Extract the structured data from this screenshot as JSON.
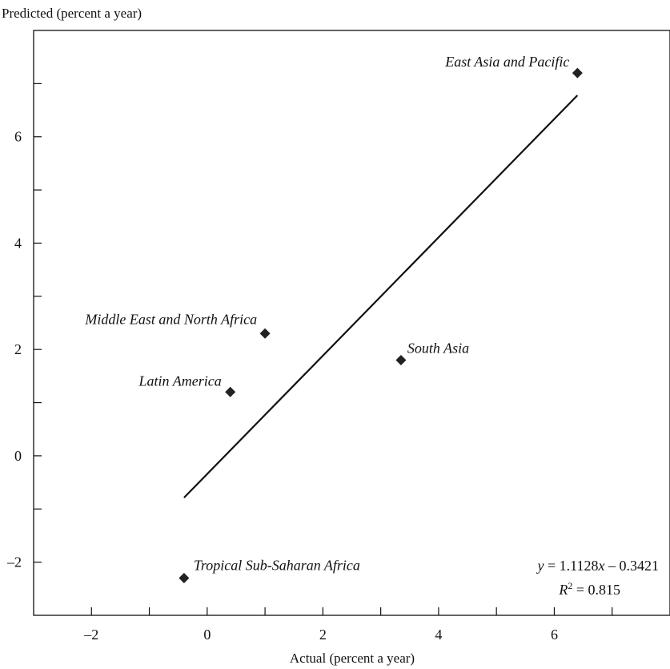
{
  "chart_data": {
    "type": "scatter",
    "ylabel": "Predicted (percent a year)",
    "xlabel": "Actual (percent a year)",
    "xlim": [
      -3,
      8
    ],
    "ylim": [
      -3,
      8
    ],
    "x_ticks": [
      -2,
      0,
      2,
      4,
      6
    ],
    "y_ticks": [
      -2,
      0,
      2,
      4,
      6
    ],
    "x_tick_labels": [
      "–2",
      "0",
      "2",
      "4",
      "6"
    ],
    "y_tick_labels": [
      "–2",
      "0",
      "2",
      "4",
      "6"
    ],
    "grid": false,
    "points": [
      {
        "label": "East Asia and Pacific",
        "x": 6.4,
        "y": 7.2
      },
      {
        "label": "Middle East and North Africa",
        "x": 1.0,
        "y": 2.3
      },
      {
        "label": "South Asia",
        "x": 3.35,
        "y": 1.8
      },
      {
        "label": "Latin America",
        "x": 0.4,
        "y": 1.2
      },
      {
        "label": "Tropical Sub-Saharan Africa",
        "x": -0.4,
        "y": -2.3
      }
    ],
    "trendline": {
      "slope": 1.1128,
      "intercept": -0.3421,
      "x_range": [
        -0.4,
        6.4
      ]
    },
    "annotations": {
      "equation": "y = 1.1128x – 0.3421",
      "r_squared": "R2 = 0.815"
    }
  }
}
